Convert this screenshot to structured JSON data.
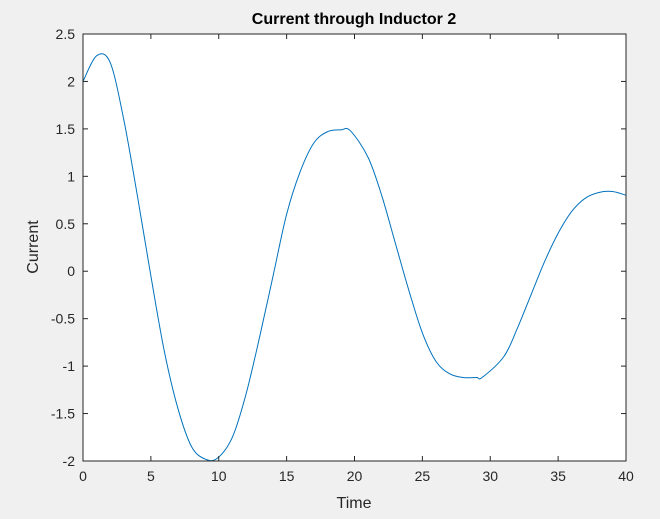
{
  "colors": {
    "figure_background": "#f0f0f0",
    "axes_background": "#ffffff",
    "axis_color": "#262626",
    "line_color": "#0072bd"
  },
  "chart_data": {
    "type": "line",
    "title": "Current through Inductor 2",
    "xlabel": "Time",
    "ylabel": "Current",
    "xlim": [
      0,
      40
    ],
    "ylim": [
      -2,
      2.5
    ],
    "xticks": [
      0,
      5,
      10,
      15,
      20,
      25,
      30,
      35,
      40
    ],
    "yticks": [
      -2,
      -1.5,
      -1,
      -0.5,
      0,
      0.5,
      1,
      1.5,
      2,
      2.5
    ],
    "grid": false,
    "series": [
      {
        "color": "#0072bd",
        "x": [
          0,
          1,
          2,
          3,
          4,
          5,
          6,
          7,
          8,
          9,
          9.9,
          11,
          12,
          13,
          14,
          15,
          16,
          17,
          18,
          19,
          19.7,
          21,
          22,
          23,
          24,
          25,
          26,
          27,
          28,
          29,
          29.4,
          31,
          32,
          33,
          34,
          35,
          36,
          37,
          38,
          39,
          40
        ],
        "y": [
          2.0,
          2.27,
          2.2,
          1.6,
          0.8,
          -0.05,
          -0.85,
          -1.45,
          -1.85,
          -1.98,
          -1.97,
          -1.75,
          -1.3,
          -0.7,
          -0.05,
          0.6,
          1.05,
          1.35,
          1.47,
          1.49,
          1.48,
          1.2,
          0.8,
          0.3,
          -0.2,
          -0.65,
          -0.95,
          -1.08,
          -1.12,
          -1.12,
          -1.12,
          -0.9,
          -0.6,
          -0.25,
          0.1,
          0.4,
          0.63,
          0.77,
          0.83,
          0.84,
          0.8
        ]
      }
    ]
  }
}
